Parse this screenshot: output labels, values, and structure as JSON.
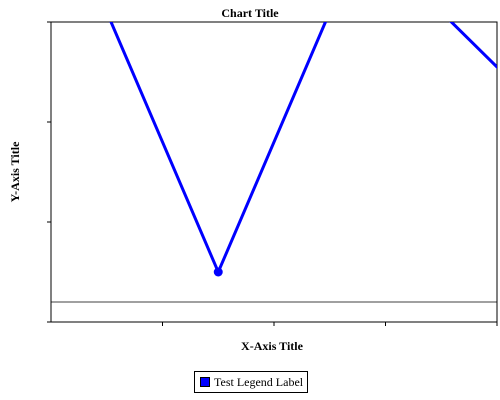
{
  "chart_data": {
    "type": "line",
    "title": "Chart Title",
    "xlabel": "X-Axis Title",
    "ylabel": "Y-Axis Title",
    "x": [
      1,
      2,
      3,
      4,
      5
    ],
    "series": [
      {
        "name": "Test Legend Label",
        "values": [
          3.1,
          0.5,
          3.1,
          3.1,
          2.0
        ],
        "color": "#0000ff",
        "markers_visible": [
          false,
          true,
          false,
          false,
          true
        ]
      }
    ],
    "xlim": [
      0.5,
      4.5
    ],
    "ylim": [
      0,
      3
    ],
    "y_ticks": [
      0,
      1,
      2,
      3
    ],
    "x_ticks": [
      1.5,
      2.5,
      3.5,
      4.5
    ],
    "reference_line_y": 0.2,
    "grid": false,
    "legend_position": "bottom"
  }
}
